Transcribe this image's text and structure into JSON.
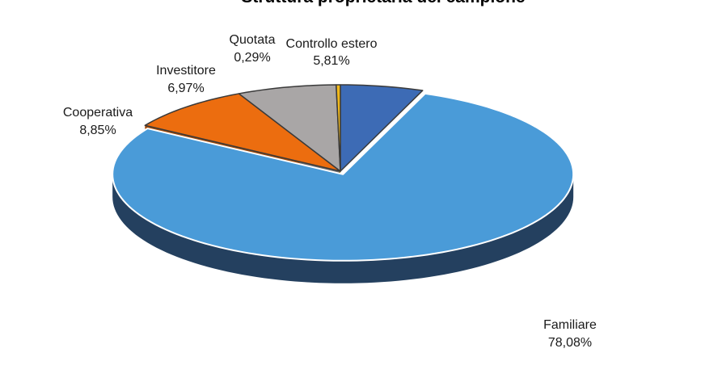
{
  "chart_data": {
    "type": "pie",
    "title": "Struttura proprietaria del campione",
    "slices": [
      {
        "label": "Controllo estero",
        "value": 5.81,
        "value_label": "5,81%",
        "color": "#3d6bb5",
        "dark": "#2a4b80"
      },
      {
        "label": "Familiare",
        "value": 78.08,
        "value_label": "78,08%",
        "color": "#4a9bd8",
        "dark": "#24405f"
      },
      {
        "label": "Cooperativa",
        "value": 8.85,
        "value_label": "8,85%",
        "color": "#ec6d0f",
        "dark": "#a44a08"
      },
      {
        "label": "Investitore",
        "value": 6.97,
        "value_label": "6,97%",
        "color": "#a9a6a6",
        "dark": "#6f6c6c"
      },
      {
        "label": "Quotata",
        "value": 0.29,
        "value_label": "0,29%",
        "color": "#f0b81c",
        "dark": "#a8800f"
      }
    ],
    "exploded_slice": "Familiare",
    "legend": "none",
    "style": "3d"
  }
}
